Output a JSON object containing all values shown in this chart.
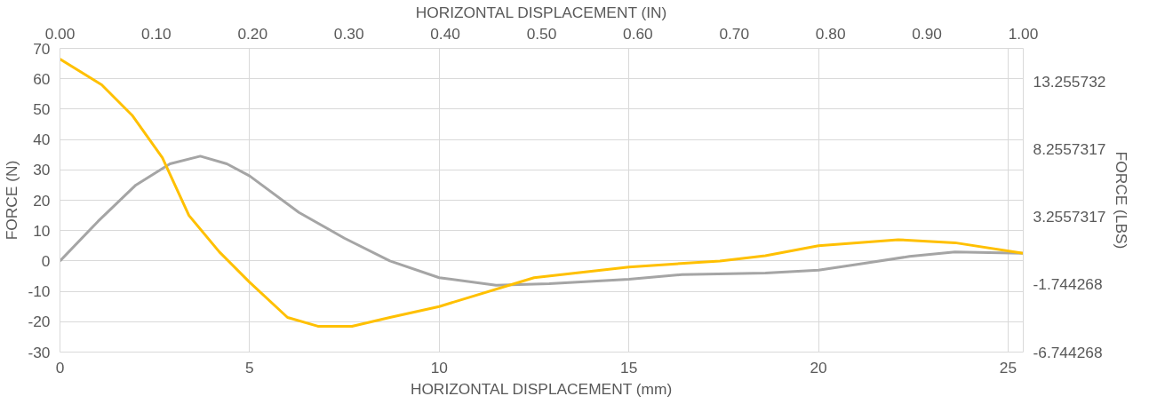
{
  "chart_data": {
    "type": "line",
    "xlabel": "HORIZONTAL DISPLACEMENT (mm)",
    "x2label": "HORIZONTAL DISPLACEMENT (IN)",
    "ylabel": "FORCE (N)",
    "y2label": "FORCE (LBS)",
    "xlim": [
      0,
      25.4
    ],
    "xticks": [
      0,
      5,
      10,
      15,
      20,
      25
    ],
    "x2lim": [
      0,
      1
    ],
    "x2ticks": [
      {
        "value": 0,
        "label": "0.00"
      },
      {
        "value": 0.1,
        "label": "0.10"
      },
      {
        "value": 0.2,
        "label": "0.20"
      },
      {
        "value": 0.3,
        "label": "0.30"
      },
      {
        "value": 0.4,
        "label": "0.40"
      },
      {
        "value": 0.5,
        "label": "0.50"
      },
      {
        "value": 0.6,
        "label": "0.60"
      },
      {
        "value": 0.7,
        "label": "0.70"
      },
      {
        "value": 0.8,
        "label": "0.80"
      },
      {
        "value": 0.9,
        "label": "0.90"
      },
      {
        "value": 1,
        "label": "1.00"
      }
    ],
    "ylim": [
      -30,
      70
    ],
    "yticks": [
      -30,
      -20,
      -10,
      0,
      10,
      20,
      30,
      40,
      50,
      60,
      70
    ],
    "y2lim": [
      -6.744268,
      15.736
    ],
    "y2ticks": [
      -6.744268,
      -1.744268,
      3.2557317,
      8.2557317,
      13.255732
    ],
    "grid": true,
    "marker": "none",
    "line_style": "solid",
    "series": [
      {
        "color": "#a5a5a5",
        "x": [
          0,
          1,
          2,
          2.9,
          3.7,
          4.4,
          5,
          6.3,
          7.5,
          8.7,
          10,
          11.5,
          12.9,
          15,
          16.4,
          18.6,
          20,
          21.1,
          22.4,
          23.6,
          25.4
        ],
        "values": [
          0,
          13,
          25,
          32,
          34.5,
          32,
          28,
          16,
          7.5,
          0,
          -5.5,
          -8,
          -7.5,
          -6,
          -4.5,
          -4,
          -3,
          -1,
          1.5,
          3,
          2.5
        ]
      },
      {
        "color": "#ffc000",
        "x": [
          0,
          1.1,
          1.9,
          2.7,
          3.4,
          4.2,
          5,
          6,
          6.8,
          7.7,
          8.7,
          10,
          12.5,
          15,
          17.4,
          18.6,
          20,
          22.1,
          23.6,
          25.4
        ],
        "values": [
          66.5,
          58,
          48,
          34,
          15,
          3,
          -7,
          -18.6,
          -21.5,
          -21.5,
          -18.6,
          -15,
          -5.5,
          -2,
          0,
          1.7,
          5,
          7,
          6,
          2.5
        ]
      }
    ]
  }
}
